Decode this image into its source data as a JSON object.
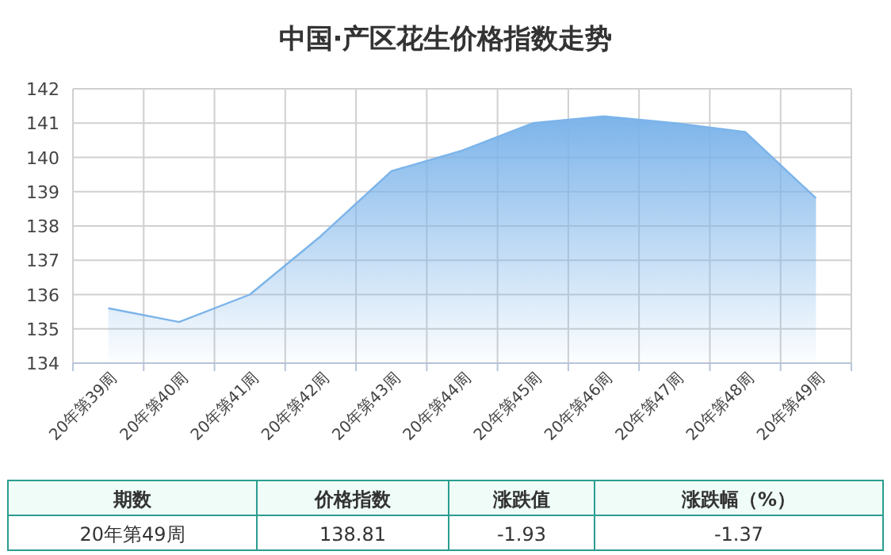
{
  "chart_data": {
    "type": "area",
    "title": "中国·产区花生价格指数走势",
    "categories": [
      "20年第39周",
      "20年第40周",
      "20年第41周",
      "20年第42周",
      "20年第43周",
      "20年第44周",
      "20年第45周",
      "20年第46周",
      "20年第47周",
      "20年第48周",
      "20年第49周"
    ],
    "series": [
      {
        "color": "#7cb4ea",
        "values": [
          135.6,
          135.2,
          136.0,
          137.7,
          139.6,
          140.2,
          141.0,
          141.2,
          141.0,
          140.74,
          138.81
        ]
      }
    ],
    "ylim": [
      134,
      142
    ],
    "yticks": [
      134,
      135,
      136,
      137,
      138,
      139,
      140,
      141,
      142
    ],
    "grid": true,
    "annotations": [
      "期数",
      "价格指数",
      "涨跌值",
      "涨跌幅（%）",
      "20年第49周",
      "138.81",
      "-1.93",
      "-1.37"
    ]
  }
}
